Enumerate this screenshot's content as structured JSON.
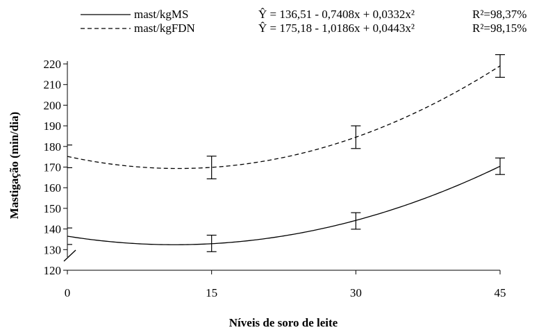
{
  "chart_data": {
    "type": "line",
    "title": "",
    "xlabel": "Níveis de soro de leite",
    "ylabel": "Mastigação (min/dia)",
    "x": [
      0,
      15,
      30,
      45
    ],
    "x_ticks": [
      "0",
      "15",
      "30",
      "45"
    ],
    "xlim": [
      0,
      45
    ],
    "ylim": [
      120,
      220
    ],
    "y_ticks": [
      "120",
      "130",
      "140",
      "150",
      "160",
      "170",
      "180",
      "190",
      "200",
      "210",
      "220"
    ],
    "axis_break": "y",
    "grid": false,
    "legend_position": "top",
    "series": [
      {
        "name": "mast/kgMS",
        "line_style": "solid",
        "color": "#000000",
        "coefficients": [
          136.51,
          -0.7408,
          0.0332
        ],
        "values": [
          136.5,
          133.0,
          143.9,
          170.4
        ],
        "error": [
          4,
          4,
          4,
          4
        ],
        "equation": "Ŷ = 136,51 - 0,7408x + 0,0332x²",
        "r2": "R²=98,37%"
      },
      {
        "name": "mast/kgFDN",
        "line_style": "dashed",
        "color": "#000000",
        "coefficients": [
          175.18,
          -1.0186,
          0.0443
        ],
        "values": [
          175.2,
          169.8,
          184.5,
          219.0
        ],
        "error": [
          5.5,
          5.5,
          5.5,
          5.5
        ],
        "equation": "Ŷ = 175,18 - 1,0186x + 0,0443x²",
        "r2": "R²=98,15%"
      }
    ]
  }
}
